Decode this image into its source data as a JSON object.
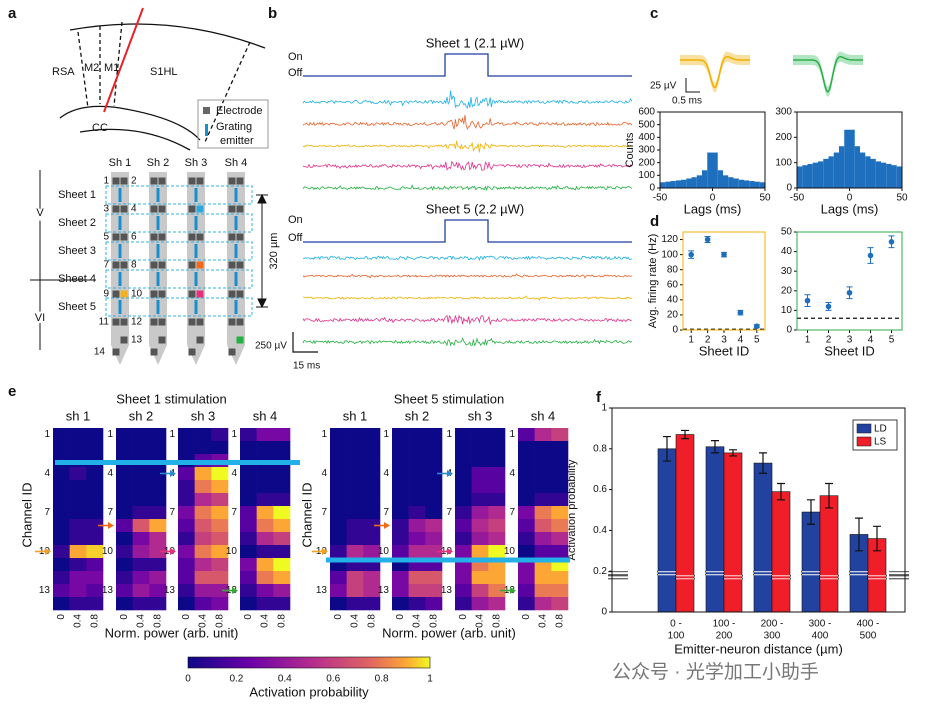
{
  "panels": {
    "a": {
      "label": "a",
      "regions": [
        "RSA",
        "M2",
        "M1",
        "S1HL"
      ],
      "cc": "CC",
      "electrode": "Electrode",
      "emitter": [
        "Grating",
        "emitter"
      ],
      "shanks": [
        "Sh 1",
        "Sh 2",
        "Sh 3",
        "Sh 4"
      ],
      "sheets": [
        "Sheet 1",
        "Sheet 2",
        "Sheet 3",
        "Sheet 4",
        "Sheet 5"
      ],
      "channels": [
        1,
        2,
        3,
        4,
        5,
        6,
        7,
        8,
        9,
        10,
        11,
        12,
        13,
        14
      ],
      "layers": [
        "V",
        "VI"
      ],
      "scale": "320 µm"
    },
    "b": {
      "label": "b",
      "titles": [
        "Sheet 1 (2.1 µW)",
        "Sheet 5 (2.2 µW)"
      ],
      "on": "On",
      "off": "Off",
      "scale_v": "250 µV",
      "scale_t": "15 ms"
    },
    "c": {
      "label": "c",
      "scale_v": "25 µV",
      "scale_t": "0.5 ms"
    },
    "e": {
      "label": "e",
      "ylabel": "Channel ID",
      "xlabel": "Norm. power (arb. unit)",
      "xticks": [
        0,
        0.4,
        0.8
      ],
      "yticks": [
        1,
        4,
        7,
        10,
        13
      ],
      "shanks": [
        "sh 1",
        "sh 2",
        "sh 3",
        "sh 4"
      ],
      "colorbar_label": "Activation probability",
      "colorbar_ticks": [
        0,
        0.2,
        0.4,
        0.6,
        0.8,
        1
      ],
      "stimulations": [
        {
          "title": "Sheet 1 stimulation",
          "maps": [
            [
              [
                0,
                0,
                0
              ],
              [
                0,
                0,
                0
              ],
              [
                0,
                0,
                0
              ],
              [
                0,
                0.1,
                0
              ],
              [
                0,
                0,
                0
              ],
              [
                0,
                0,
                0
              ],
              [
                0,
                0,
                0
              ],
              [
                0,
                0.1,
                0.1
              ],
              [
                0,
                0.1,
                0.1
              ],
              [
                0.1,
                0.9,
                0.95
              ],
              [
                0,
                0.1,
                0.2
              ],
              [
                0.1,
                0.3,
                0.3
              ],
              [
                0.2,
                0.3,
                0.2
              ],
              [
                0,
                0.1,
                0.1
              ]
            ],
            [
              [
                0,
                0,
                0
              ],
              [
                0,
                0,
                0
              ],
              [
                0,
                0,
                0
              ],
              [
                0,
                0,
                0
              ],
              [
                0,
                0,
                0
              ],
              [
                0,
                0,
                0
              ],
              [
                0,
                0.1,
                0.1
              ],
              [
                0.2,
                0.7,
                0.9
              ],
              [
                0,
                0.3,
                0.5
              ],
              [
                0.1,
                0.4,
                0.5
              ],
              [
                0,
                0.1,
                0.1
              ],
              [
                0.1,
                0.3,
                0.4
              ],
              [
                0.2,
                0.4,
                0.3
              ],
              [
                0,
                0.1,
                0.1
              ]
            ],
            [
              [
                0,
                0,
                0.1
              ],
              [
                0,
                0,
                0
              ],
              [
                0,
                0.2,
                0.3
              ],
              [
                0.2,
                0.9,
                1
              ],
              [
                0.1,
                0.8,
                0.9
              ],
              [
                0.1,
                0.5,
                0.6
              ],
              [
                0.3,
                0.8,
                0.9
              ],
              [
                0.2,
                0.7,
                0.8
              ],
              [
                0.1,
                0.6,
                0.7
              ],
              [
                0.3,
                0.8,
                0.9
              ],
              [
                0.2,
                0.5,
                0.6
              ],
              [
                0.2,
                0.7,
                0.7
              ],
              [
                0.1,
                0.4,
                0.4
              ],
              [
                0,
                0.2,
                0.3
              ]
            ],
            [
              [
                0.1,
                0.3,
                0.3
              ],
              [
                0,
                0,
                0
              ],
              [
                0,
                0,
                0
              ],
              [
                0,
                0,
                0
              ],
              [
                0,
                0,
                0
              ],
              [
                0,
                0.1,
                0.1
              ],
              [
                0.2,
                0.9,
                1
              ],
              [
                0.2,
                0.8,
                0.9
              ],
              [
                0.1,
                0.5,
                0.6
              ],
              [
                0,
                0.1,
                0.1
              ],
              [
                0.3,
                0.9,
                1
              ],
              [
                0.2,
                0.8,
                0.9
              ],
              [
                0.1,
                0.3,
                0.4
              ],
              [
                0,
                0.1,
                0.1
              ]
            ]
          ]
        },
        {
          "title": "Sheet 5 stimulation",
          "maps": [
            [
              [
                0,
                0,
                0
              ],
              [
                0,
                0,
                0
              ],
              [
                0,
                0,
                0
              ],
              [
                0,
                0,
                0
              ],
              [
                0,
                0,
                0
              ],
              [
                0,
                0,
                0
              ],
              [
                0,
                0,
                0
              ],
              [
                0,
                0.1,
                0.1
              ],
              [
                0,
                0.1,
                0.1
              ],
              [
                0.1,
                0.5,
                0.4
              ],
              [
                0,
                0.1,
                0.1
              ],
              [
                0.2,
                0.6,
                0.5
              ],
              [
                0.3,
                0.6,
                0.5
              ],
              [
                0,
                0.1,
                0.1
              ]
            ],
            [
              [
                0,
                0,
                0
              ],
              [
                0,
                0,
                0
              ],
              [
                0,
                0,
                0
              ],
              [
                0,
                0,
                0
              ],
              [
                0,
                0,
                0
              ],
              [
                0,
                0,
                0
              ],
              [
                0,
                0.1,
                0
              ],
              [
                0.1,
                0.4,
                0.5
              ],
              [
                0.1,
                0.3,
                0.4
              ],
              [
                0.2,
                0.5,
                0.5
              ],
              [
                0,
                0.2,
                0.2
              ],
              [
                0.3,
                0.7,
                0.7
              ],
              [
                0.3,
                0.6,
                0.6
              ],
              [
                0,
                0.1,
                0.2
              ]
            ],
            [
              [
                0,
                0,
                0
              ],
              [
                0,
                0,
                0
              ],
              [
                0,
                0,
                0
              ],
              [
                0,
                0.2,
                0.2
              ],
              [
                0,
                0.2,
                0.2
              ],
              [
                0,
                0.1,
                0.1
              ],
              [
                0.1,
                0.4,
                0.5
              ],
              [
                0.2,
                0.5,
                0.6
              ],
              [
                0.1,
                0.4,
                0.5
              ],
              [
                0.3,
                0.9,
                1
              ],
              [
                0.3,
                0.8,
                0.9
              ],
              [
                0.3,
                0.9,
                0.9
              ],
              [
                0.2,
                0.6,
                0.8
              ],
              [
                0.1,
                0.4,
                0.5
              ]
            ],
            [
              [
                0.2,
                0.5,
                0.6
              ],
              [
                0,
                0,
                0
              ],
              [
                0,
                0,
                0
              ],
              [
                0,
                0,
                0
              ],
              [
                0,
                0,
                0
              ],
              [
                0,
                0.1,
                0.1
              ],
              [
                0.3,
                0.8,
                0.9
              ],
              [
                0.2,
                0.7,
                0.8
              ],
              [
                0.1,
                0.4,
                0.5
              ],
              [
                0,
                0.2,
                0.2
              ],
              [
                0.3,
                0.9,
                1
              ],
              [
                0.3,
                0.9,
                0.9
              ],
              [
                0.2,
                0.8,
                0.8
              ],
              [
                0.1,
                0.5,
                0.6
              ]
            ]
          ]
        }
      ]
    },
    "watermark": "公众号 · 光学加工小助手"
  },
  "chart_data": [
    {
      "type": "histogram",
      "ylabel": "Counts",
      "xlabel": "Lags (ms)",
      "color": "#1f6fbf",
      "bins": [
        -50,
        -45,
        -40,
        -35,
        -30,
        -25,
        -20,
        -15,
        -10,
        -5,
        0,
        5,
        10,
        15,
        20,
        25,
        30,
        35,
        40,
        45,
        50
      ],
      "values": [
        45,
        50,
        55,
        60,
        65,
        75,
        85,
        100,
        140,
        280,
        280,
        140,
        100,
        85,
        75,
        65,
        60,
        55,
        50,
        45
      ],
      "xlim": [
        -50,
        50
      ],
      "xticks": [
        -50,
        0,
        50
      ],
      "ylim": [
        0,
        600
      ],
      "yticks": [
        0,
        100,
        200,
        300,
        400,
        500,
        600
      ]
    },
    {
      "type": "histogram",
      "xlabel": "Lags (ms)",
      "color": "#1f6fbf",
      "bins": [
        -50,
        -45,
        -40,
        -35,
        -30,
        -25,
        -20,
        -15,
        -10,
        -5,
        0,
        5,
        10,
        15,
        20,
        25,
        30,
        35,
        40,
        45,
        50
      ],
      "values": [
        85,
        90,
        95,
        100,
        105,
        115,
        125,
        140,
        165,
        230,
        230,
        165,
        140,
        125,
        115,
        105,
        100,
        95,
        90,
        85
      ],
      "xlim": [
        -50,
        50
      ],
      "xticks": [
        -50,
        0,
        50
      ],
      "ylim": [
        0,
        300
      ],
      "yticks": [
        0,
        100,
        200,
        300
      ]
    },
    {
      "type": "scatter",
      "panel_label": "d",
      "ylabel": "Avg. firing rate (Hz)",
      "xlabel": "Sheet ID",
      "color": "#1f6fbf",
      "frame_color": "#f0b000",
      "x": [
        1,
        2,
        3,
        4,
        5
      ],
      "values": [
        100,
        120,
        100,
        23,
        5
      ],
      "errors": [
        5,
        4,
        3,
        3,
        2
      ],
      "reference": 1,
      "xlim": [
        0.5,
        5.5
      ],
      "xticks": [
        1,
        2,
        3,
        4,
        5
      ],
      "ylim": [
        0,
        130
      ],
      "yticks": [
        0,
        20,
        40,
        60,
        80,
        100,
        120
      ]
    },
    {
      "type": "scatter",
      "xlabel": "Sheet ID",
      "color": "#1f6fbf",
      "frame_color": "#2cae4a",
      "x": [
        1,
        2,
        3,
        4,
        5
      ],
      "values": [
        15,
        12,
        19,
        38,
        45
      ],
      "errors": [
        3,
        2,
        3,
        4,
        3
      ],
      "reference": 6,
      "xlim": [
        0.5,
        5.5
      ],
      "xticks": [
        1,
        2,
        3,
        4,
        5
      ],
      "ylim": [
        0,
        50
      ],
      "yticks": [
        0,
        10,
        20,
        30,
        40,
        50
      ]
    },
    {
      "type": "bar",
      "panel_label": "f",
      "ylabel": "Activation probability",
      "xlabel": "Emitter-neuron distance (µm)",
      "legend": "top-right",
      "categories": [
        [
          "0 -",
          "100"
        ],
        [
          "100 -",
          "200"
        ],
        [
          "200 -",
          "300"
        ],
        [
          "300 -",
          "400"
        ],
        [
          "400 -",
          "500"
        ]
      ],
      "series": [
        {
          "name": "LD",
          "color": "#2242a0",
          "values": [
            0.8,
            0.81,
            0.73,
            0.49,
            0.38
          ],
          "errors": [
            0.06,
            0.03,
            0.05,
            0.06,
            0.08
          ],
          "reference": 0.19
        },
        {
          "name": "LS",
          "color": "#f01e28",
          "values": [
            0.87,
            0.78,
            0.59,
            0.57,
            0.36
          ],
          "errors": [
            0.02,
            0.015,
            0.04,
            0.06,
            0.06
          ],
          "reference": 0.17
        }
      ],
      "ylim": [
        0,
        1
      ],
      "yticks": [
        0,
        0.2,
        0.4,
        0.6,
        0.8,
        1
      ]
    }
  ]
}
